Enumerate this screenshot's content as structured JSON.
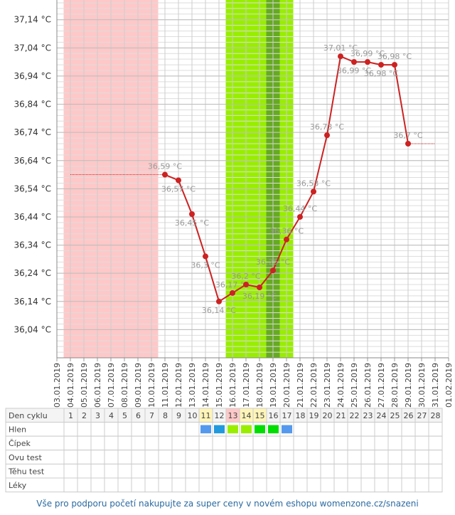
{
  "chart_data": {
    "type": "line",
    "categories": [
      "03.01.2019",
      "04.01.2019",
      "05.01.2019",
      "06.01.2019",
      "07.01.2019",
      "08.01.2019",
      "09.01.2019",
      "10.01.2019",
      "11.01.2019",
      "12.01.2019",
      "13.01.2019",
      "14.01.2019",
      "15.01.2019",
      "16.01.2019",
      "17.01.2019",
      "18.01.2019",
      "19.01.2019",
      "20.01.2019",
      "21.01.2019",
      "22.01.2019",
      "23.01.2019",
      "24.01.2019",
      "25.01.2019",
      "26.01.2019",
      "27.01.2019",
      "28.01.2019",
      "29.01.2019",
      "30.01.2019",
      "31.01.2019",
      "01.02.2019"
    ],
    "series": [
      {
        "color": "#cc2222",
        "values": [
          null,
          null,
          null,
          null,
          null,
          null,
          null,
          null,
          36.59,
          36.57,
          36.45,
          36.3,
          36.14,
          36.17,
          36.2,
          36.19,
          36.25,
          36.36,
          36.44,
          36.53,
          36.73,
          37.01,
          36.99,
          36.99,
          36.98,
          36.98,
          36.7,
          null,
          null,
          null
        ],
        "value_labels": [
          null,
          null,
          null,
          null,
          null,
          null,
          null,
          null,
          "36,59 °C",
          "36,57 °C",
          "36,45 °C",
          "36,3 °C",
          "36,14 °C",
          "36,17 °C",
          "36,2 °C",
          "36,19 °C",
          "36,25 °C",
          "36,36 °C",
          "36,44 °C",
          "36,53 °C",
          "36,73 °C",
          "37,01 °C",
          "36,99 °C",
          "36,99 °C",
          "36,98 °C",
          "36,98 °C",
          "36,7 °C",
          null,
          null,
          null
        ]
      }
    ],
    "ylim": [
      35.94,
      37.21
    ],
    "yticks": [
      {
        "value": 36.04,
        "label": "36,04 °C"
      },
      {
        "value": 36.14,
        "label": "36,14 °C"
      },
      {
        "value": 36.24,
        "label": "36,24 °C"
      },
      {
        "value": 36.34,
        "label": "36,34 °C"
      },
      {
        "value": 36.44,
        "label": "36,44 °C"
      },
      {
        "value": 36.54,
        "label": "36,54 °C"
      },
      {
        "value": 36.64,
        "label": "36,64 °C"
      },
      {
        "value": 36.74,
        "label": "36,74 °C"
      },
      {
        "value": 36.84,
        "label": "36,84 °C"
      },
      {
        "value": 36.94,
        "label": "36,94 °C"
      },
      {
        "value": 37.04,
        "label": "37,04 °C"
      },
      {
        "value": 37.14,
        "label": "37,14 °C"
      }
    ],
    "grid": true,
    "bands": [
      {
        "start": "04.01.2019",
        "end": "10.01.2019",
        "color": "#ffc8c8"
      },
      {
        "start": "16.01.2019",
        "end": "20.01.2019",
        "color": "#99ee00"
      },
      {
        "start": "19.01.2019",
        "end": "19.01.2019",
        "color": "#66aa22"
      }
    ]
  },
  "cycle_table": {
    "row_labels": [
      "Den cyklu",
      "Hlen",
      "Čípek",
      "Ovu test",
      "Těhu test",
      "Léky"
    ],
    "days": [
      1,
      2,
      3,
      4,
      5,
      6,
      7,
      8,
      9,
      10,
      11,
      12,
      13,
      14,
      15,
      16,
      17,
      18,
      19,
      20,
      21,
      22,
      23,
      24,
      25,
      26,
      27,
      28
    ],
    "day_colors": [
      null,
      null,
      null,
      null,
      null,
      null,
      null,
      null,
      null,
      null,
      "#fff4b8",
      null,
      "#ffc8c8",
      "#fff4b8",
      "#fff4b8",
      null,
      null,
      null,
      null,
      null,
      null,
      null,
      null,
      null,
      null,
      null,
      null,
      null
    ],
    "mucus_colors": [
      null,
      null,
      null,
      null,
      null,
      null,
      null,
      null,
      null,
      null,
      "#5599ee",
      "#2299dd",
      "#99ee00",
      "#99ee00",
      "#00dd00",
      "#00dd00",
      "#5599ee",
      null,
      null,
      null,
      null,
      null,
      null,
      null,
      null,
      null,
      null,
      null
    ]
  },
  "footer": "Vše pro podporu početí nakupujte za super ceny v novém eshopu womenzone.cz/snazeni"
}
